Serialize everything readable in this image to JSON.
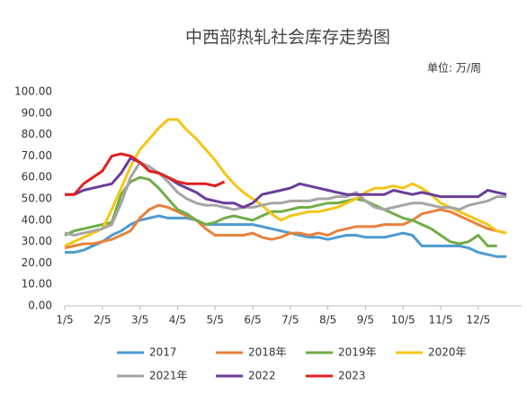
{
  "chart_data": {
    "type": "line",
    "title": "中西部热轧社会库存走势图",
    "unit": "单位: 万/周",
    "categories": [
      "1/5",
      null,
      null,
      null,
      "2/5",
      null,
      null,
      null,
      "3/5",
      null,
      null,
      null,
      "4/5",
      null,
      null,
      null,
      "5/5",
      null,
      null,
      null,
      "6/5",
      null,
      null,
      null,
      "7/5",
      null,
      null,
      null,
      "8/5",
      null,
      null,
      null,
      "9/5",
      null,
      null,
      null,
      "10/5",
      null,
      null,
      null,
      "11/5",
      null,
      null,
      null,
      "12/5",
      null,
      null,
      null
    ],
    "ylim": [
      0,
      100
    ],
    "yticks": [
      {
        "value": 0,
        "label": "0.00"
      },
      {
        "value": 10,
        "label": "10.00"
      },
      {
        "value": 20,
        "label": "20.00"
      },
      {
        "value": 30,
        "label": "30.00"
      },
      {
        "value": 40,
        "label": "40.00"
      },
      {
        "value": 50,
        "label": "50.00"
      },
      {
        "value": 60,
        "label": "60.00"
      },
      {
        "value": 70,
        "label": "70.00"
      },
      {
        "value": 80,
        "label": "80.00"
      },
      {
        "value": 90,
        "label": "90.00"
      },
      {
        "value": 100,
        "label": "100.00"
      }
    ],
    "grid": false,
    "series": [
      {
        "name": "2017",
        "color": "#4e9bd0",
        "values": [
          25,
          25,
          26,
          28,
          30,
          33,
          35,
          38,
          40,
          41,
          42,
          41,
          41,
          41,
          40,
          38,
          38,
          38,
          38,
          38,
          38,
          37,
          36,
          35,
          34,
          33,
          32,
          32,
          31,
          32,
          33,
          33,
          32,
          32,
          32,
          33,
          34,
          33,
          28,
          28,
          28,
          28,
          28,
          27,
          25,
          24,
          23,
          23
        ]
      },
      {
        "name": "2018年",
        "color": "#e9813c",
        "values": [
          27,
          28,
          29,
          29,
          30,
          31,
          33,
          35,
          41,
          45,
          47,
          46,
          44,
          42,
          40,
          36,
          33,
          33,
          33,
          33,
          34,
          32,
          31,
          32,
          34,
          34,
          33,
          34,
          33,
          35,
          36,
          37,
          37,
          37,
          38,
          38,
          38,
          40,
          43,
          44,
          45,
          44,
          42,
          40,
          38,
          36,
          35,
          34
        ]
      },
      {
        "name": "2019年",
        "color": "#70ad47",
        "values": [
          33,
          35,
          36,
          37,
          38,
          39,
          52,
          58,
          60,
          59,
          55,
          50,
          45,
          43,
          40,
          38,
          39,
          41,
          42,
          41,
          40,
          42,
          44,
          44,
          45,
          46,
          46,
          47,
          48,
          48,
          49,
          50,
          49,
          47,
          45,
          43,
          41,
          40,
          38,
          36,
          33,
          30,
          29,
          30,
          33,
          28,
          28,
          null
        ]
      },
      {
        "name": "2020年",
        "color": "#f5c518",
        "values": [
          28,
          30,
          32,
          34,
          36,
          45,
          55,
          65,
          73,
          78,
          83,
          87,
          87,
          82,
          78,
          73,
          68,
          62,
          57,
          53,
          50,
          47,
          43,
          40,
          42,
          43,
          44,
          44,
          45,
          46,
          48,
          50,
          53,
          55,
          55,
          56,
          55,
          57,
          55,
          52,
          48,
          46,
          44,
          42,
          40,
          38,
          35,
          34
        ]
      },
      {
        "name": "2021年",
        "color": "#a5a5a5",
        "values": [
          34,
          33,
          34,
          35,
          36,
          38,
          48,
          60,
          67,
          65,
          62,
          58,
          53,
          50,
          48,
          47,
          47,
          46,
          45,
          46,
          46,
          47,
          48,
          48,
          49,
          49,
          49,
          50,
          50,
          51,
          51,
          53,
          49,
          46,
          45,
          46,
          47,
          48,
          48,
          47,
          46,
          46,
          45,
          47,
          48,
          49,
          51,
          51
        ]
      },
      {
        "name": "2022",
        "color": "#6a3d9a",
        "values": [
          52,
          52,
          54,
          55,
          56,
          57,
          62,
          69,
          67,
          63,
          62,
          60,
          57,
          55,
          53,
          50,
          49,
          48,
          48,
          46,
          48,
          52,
          53,
          54,
          55,
          57,
          56,
          55,
          54,
          53,
          52,
          52,
          52,
          52,
          52,
          54,
          53,
          52,
          53,
          52,
          51,
          51,
          51,
          51,
          51,
          54,
          53,
          52
        ]
      },
      {
        "name": "2023",
        "color": "#e02020",
        "values": [
          52,
          52,
          57,
          60,
          63,
          70,
          71,
          70,
          67,
          63,
          62,
          60,
          58,
          57,
          57,
          57,
          56,
          58,
          null,
          null,
          null,
          null,
          null,
          null,
          null,
          null,
          null,
          null,
          null,
          null,
          null,
          null,
          null,
          null,
          null,
          null,
          null,
          null,
          null,
          null,
          null,
          null,
          null,
          null,
          null,
          null,
          null,
          null
        ]
      }
    ]
  }
}
